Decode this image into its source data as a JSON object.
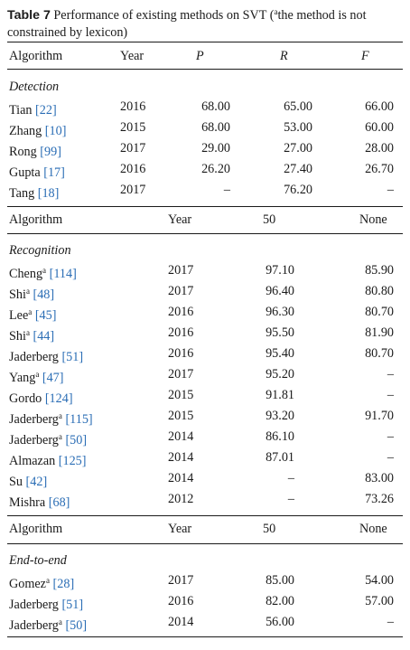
{
  "caption": {
    "label": "Table 7",
    "text_before": "Performance of existing methods on SVT (",
    "sup": "a",
    "text_after": "the method is not constrained by lexicon)"
  },
  "detection": {
    "headers": {
      "algorithm": "Algorithm",
      "year": "Year",
      "p": "P",
      "r": "R",
      "f": "F"
    },
    "section": "Detection",
    "rows": [
      {
        "name": "Tian ",
        "sup": "",
        "ref": "[22]",
        "year": "2016",
        "p": "68.00",
        "r": "65.00",
        "f": "66.00"
      },
      {
        "name": "Zhang ",
        "sup": "",
        "ref": "[10]",
        "year": "2015",
        "p": "68.00",
        "r": "53.00",
        "f": "60.00"
      },
      {
        "name": "Rong ",
        "sup": "",
        "ref": "[99]",
        "year": "2017",
        "p": "29.00",
        "r": "27.00",
        "f": "28.00"
      },
      {
        "name": "Gupta ",
        "sup": "",
        "ref": "[17]",
        "year": "2016",
        "p": "26.20",
        "r": "27.40",
        "f": "26.70"
      },
      {
        "name": "Tang ",
        "sup": "",
        "ref": "[18]",
        "year": "2017",
        "p": "–",
        "r": "76.20",
        "f": "–"
      }
    ]
  },
  "recognition": {
    "headers": {
      "algorithm": "Algorithm",
      "year": "Year",
      "c50": "50",
      "none": "None"
    },
    "section": "Recognition",
    "rows": [
      {
        "name": "Cheng",
        "sup": "a",
        "ref": " [114]",
        "year": "2017",
        "c50": "97.10",
        "none": "85.90"
      },
      {
        "name": "Shi",
        "sup": "a",
        "ref": " [48]",
        "year": "2017",
        "c50": "96.40",
        "none": "80.80"
      },
      {
        "name": "Lee",
        "sup": "a",
        "ref": " [45]",
        "year": "2016",
        "c50": "96.30",
        "none": "80.70"
      },
      {
        "name": "Shi",
        "sup": "a",
        "ref": " [44]",
        "year": "2016",
        "c50": "95.50",
        "none": "81.90"
      },
      {
        "name": "Jaderberg",
        "sup": "",
        "ref": " [51]",
        "year": "2016",
        "c50": "95.40",
        "none": "80.70"
      },
      {
        "name": "Yang",
        "sup": "a",
        "ref": " [47]",
        "year": "2017",
        "c50": "95.20",
        "none": "–"
      },
      {
        "name": "Gordo",
        "sup": "",
        "ref": " [124]",
        "year": "2015",
        "c50": "91.81",
        "none": "–"
      },
      {
        "name": "Jaderberg",
        "sup": "a",
        "ref": " [115]",
        "year": "2015",
        "c50": "93.20",
        "none": "91.70"
      },
      {
        "name": "Jaderberg",
        "sup": "a",
        "ref": " [50]",
        "year": "2014",
        "c50": "86.10",
        "none": "–"
      },
      {
        "name": "Almazan",
        "sup": "",
        "ref": " [125]",
        "year": "2014",
        "c50": "87.01",
        "none": "–"
      },
      {
        "name": "Su",
        "sup": "",
        "ref": " [42]",
        "year": "2014",
        "c50": "–",
        "none": "83.00"
      },
      {
        "name": "Mishra",
        "sup": "",
        "ref": " [68]",
        "year": "2012",
        "c50": "–",
        "none": "73.26"
      }
    ]
  },
  "endtoend": {
    "headers": {
      "algorithm": "Algorithm",
      "year": "Year",
      "c50": "50",
      "none": "None"
    },
    "section": "End-to-end",
    "rows": [
      {
        "name": "Gomez",
        "sup": "a",
        "ref": " [28]",
        "year": "2017",
        "c50": "85.00",
        "none": "54.00"
      },
      {
        "name": "Jaderberg",
        "sup": "",
        "ref": " [51]",
        "year": "2016",
        "c50": "82.00",
        "none": "57.00"
      },
      {
        "name": "Jaderberg",
        "sup": "a",
        "ref": " [50]",
        "year": "2014",
        "c50": "56.00",
        "none": "–"
      }
    ]
  }
}
